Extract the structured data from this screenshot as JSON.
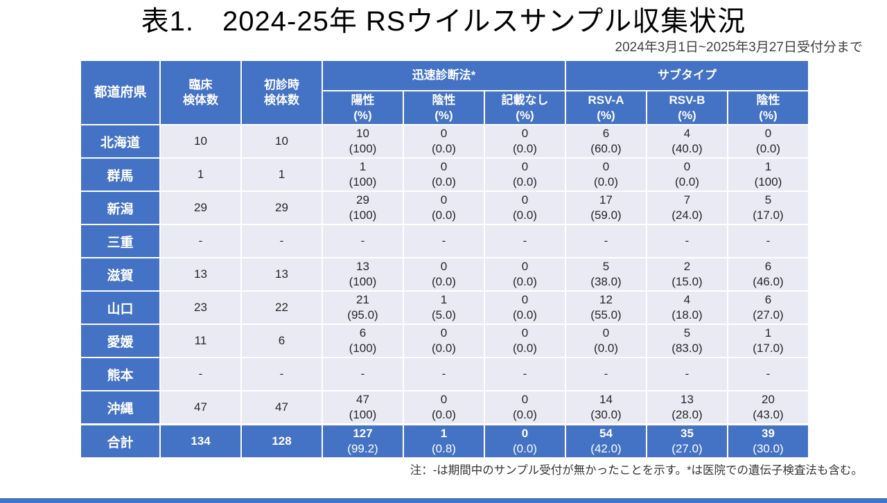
{
  "page": {
    "title": "表1.　2024-25年 RSウイルスサンプル収集状況",
    "subtitle": "2024年3月1日~2025年3月27日受付分まで",
    "note": "注：-は期間中のサンプル受付が無かったことを示す。*は医院での遺伝子検査法も含む。"
  },
  "colors": {
    "header_blue": "#4472C4",
    "cell_background": "#E9EAF4",
    "gridline": "#FFFFFF",
    "text_dark": "#262626"
  },
  "table": {
    "headers": {
      "prefecture": "都道府県",
      "clinical": "臨床\n検体数",
      "first_visit": "初診時\n検体数",
      "rapid_group": "迅速診断法*",
      "subtype_group": "サブタイプ",
      "sub": [
        "陽性\n(%)",
        "陰性\n(%)",
        "記載なし\n(%)",
        "RSV-A\n(%)",
        "RSV-B\n(%)",
        "陰性\n(%)"
      ]
    },
    "rows": [
      {
        "name": "北海道",
        "clinical": "10",
        "first_visit": "10",
        "cells": [
          "10\n(100)",
          "0\n(0.0)",
          "0\n(0.0)",
          "6\n(60.0)",
          "4\n(40.0)",
          "0\n(0.0)"
        ]
      },
      {
        "name": "群馬",
        "clinical": "1",
        "first_visit": "1",
        "cells": [
          "1\n(100)",
          "0\n(0.0)",
          "0\n(0.0)",
          "0\n(0.0)",
          "0\n(0.0)",
          "1\n(100)"
        ]
      },
      {
        "name": "新潟",
        "clinical": "29",
        "first_visit": "29",
        "cells": [
          "29\n(100)",
          "0\n(0.0)",
          "0\n(0.0)",
          "17\n(59.0)",
          "7\n(24.0)",
          "5\n(17.0)"
        ]
      },
      {
        "name": "三重",
        "clinical": "-",
        "first_visit": "-",
        "cells": [
          "-",
          "-",
          "-",
          "-",
          "-",
          "-"
        ]
      },
      {
        "name": "滋賀",
        "clinical": "13",
        "first_visit": "13",
        "cells": [
          "13\n(100)",
          "0\n(0.0)",
          "0\n(0.0)",
          "5\n(38.0)",
          "2\n(15.0)",
          "6\n(46.0)"
        ]
      },
      {
        "name": "山口",
        "clinical": "23",
        "first_visit": "22",
        "cells": [
          "21\n(95.0)",
          "1\n(5.0)",
          "0\n(0.0)",
          "12\n(55.0)",
          "4\n(18.0)",
          "6\n(27.0)"
        ]
      },
      {
        "name": "愛媛",
        "clinical": "11",
        "first_visit": "6",
        "cells": [
          "6\n(100)",
          "0\n(0.0)",
          "0\n(0.0)",
          "0\n(0.0)",
          "5\n(83.0)",
          "1\n(17.0)"
        ]
      },
      {
        "name": "熊本",
        "clinical": "-",
        "first_visit": "-",
        "cells": [
          "-",
          "-",
          "-",
          "-",
          "-",
          "-"
        ]
      },
      {
        "name": "沖縄",
        "clinical": "47",
        "first_visit": "47",
        "cells": [
          "47\n(100)",
          "0\n(0.0)",
          "0\n(0.0)",
          "14\n(30.0)",
          "13\n(28.0)",
          "20\n(43.0)"
        ]
      }
    ],
    "total": {
      "name": "合計",
      "clinical": "134",
      "first_visit": "128",
      "cells": [
        "127\n(99.2)",
        "1\n(0.8)",
        "0\n(0.0)",
        "54\n(42.0)",
        "35\n(27.0)",
        "39\n(30.0)"
      ]
    }
  },
  "chart_data": {
    "type": "table",
    "title": "表1.　2024-25年 RSウイルスサンプル収集状況",
    "subtitle": "2024年3月1日~2025年3月27日受付分まで",
    "note": "注：-は期間中のサンプル受付が無かったことを示す。*は医院での遺伝子検査法も含む。",
    "column_groups": [
      "迅速診断法* (陽性/陰性/記載なし)",
      "サブタイプ (RSV-A/RSV-B/陰性)"
    ],
    "columns": [
      "都道府県",
      "臨床検体数",
      "初診時検体数",
      "陽性 (%)",
      "陰性 (%)",
      "記載なし (%)",
      "RSV-A (%)",
      "RSV-B (%)",
      "陰性 (%)"
    ],
    "rows": [
      [
        "北海道",
        "10",
        "10",
        "10 (100)",
        "0 (0.0)",
        "0 (0.0)",
        "6 (60.0)",
        "4 (40.0)",
        "0 (0.0)"
      ],
      [
        "群馬",
        "1",
        "1",
        "1 (100)",
        "0 (0.0)",
        "0 (0.0)",
        "0 (0.0)",
        "0 (0.0)",
        "1 (100)"
      ],
      [
        "新潟",
        "29",
        "29",
        "29 (100)",
        "0 (0.0)",
        "0 (0.0)",
        "17 (59.0)",
        "7 (24.0)",
        "5 (17.0)"
      ],
      [
        "三重",
        "-",
        "-",
        "-",
        "-",
        "-",
        "-",
        "-",
        "-"
      ],
      [
        "滋賀",
        "13",
        "13",
        "13 (100)",
        "0 (0.0)",
        "0 (0.0)",
        "5 (38.0)",
        "2 (15.0)",
        "6 (46.0)"
      ],
      [
        "山口",
        "23",
        "22",
        "21 (95.0)",
        "1 (5.0)",
        "0 (0.0)",
        "12 (55.0)",
        "4 (18.0)",
        "6 (27.0)"
      ],
      [
        "愛媛",
        "11",
        "6",
        "6 (100)",
        "0 (0.0)",
        "0 (0.0)",
        "0 (0.0)",
        "5 (83.0)",
        "1 (17.0)"
      ],
      [
        "熊本",
        "-",
        "-",
        "-",
        "-",
        "-",
        "-",
        "-",
        "-"
      ],
      [
        "沖縄",
        "47",
        "47",
        "47 (100)",
        "0 (0.0)",
        "0 (0.0)",
        "14 (30.0)",
        "13 (28.0)",
        "20 (43.0)"
      ]
    ],
    "total_row": [
      "合計",
      "134",
      "128",
      "127 (99.2)",
      "1 (0.8)",
      "0 (0.0)",
      "54 (42.0)",
      "35 (27.0)",
      "39 (30.0)"
    ]
  }
}
